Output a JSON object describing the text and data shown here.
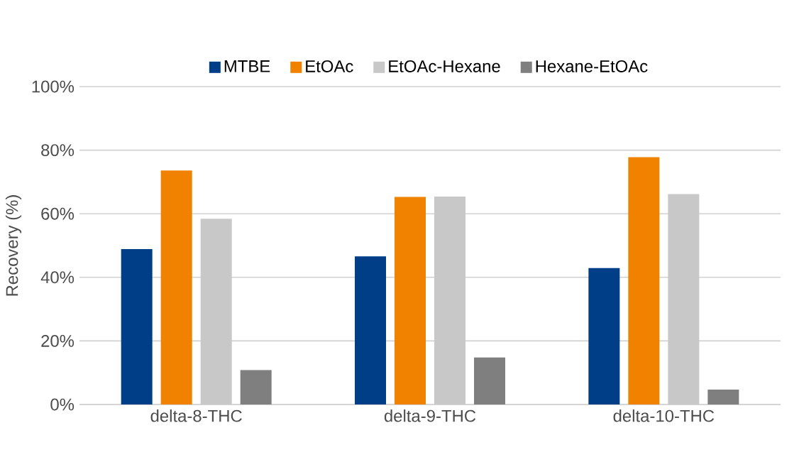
{
  "chart_data": {
    "type": "bar",
    "ylabel": "Recovery (%)",
    "categories": [
      "delta-8-THC",
      "delta-9-THC",
      "delta-10-THC"
    ],
    "series": [
      {
        "name": "MTBE",
        "color": "#003f87",
        "values": [
          48.9,
          46.6,
          42.9
        ]
      },
      {
        "name": "EtOAc",
        "color": "#f08200",
        "values": [
          73.6,
          65.3,
          77.8
        ]
      },
      {
        "name": "EtOAc-Hexane",
        "color": "#c8c8c8",
        "values": [
          58.4,
          65.4,
          66.2
        ]
      },
      {
        "name": "Hexane-EtOAc",
        "color": "#7f7f7f",
        "values": [
          10.8,
          14.8,
          4.7
        ]
      }
    ],
    "ylim": [
      0,
      100
    ],
    "yticks": [
      {
        "value": 0,
        "label": "0%"
      },
      {
        "value": 20,
        "label": "20%"
      },
      {
        "value": 40,
        "label": "40%"
      },
      {
        "value": 60,
        "label": "60%"
      },
      {
        "value": 80,
        "label": "80%"
      },
      {
        "value": 100,
        "label": "100%"
      }
    ],
    "grid": "y",
    "legend": "top"
  }
}
